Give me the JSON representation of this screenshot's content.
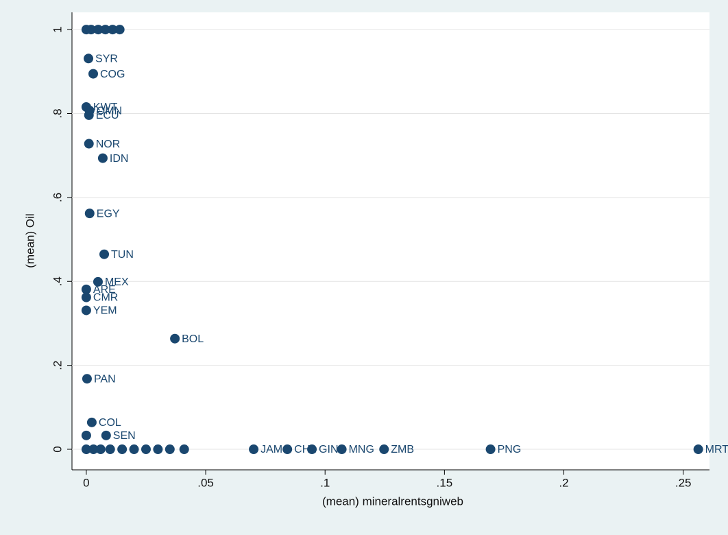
{
  "chart_data": {
    "type": "scatter",
    "xlabel": "(mean) mineralrentsgniweb",
    "ylabel": "(mean) Oil",
    "color": "#1a476f",
    "grid": true,
    "xlim": [
      -0.006,
      0.261
    ],
    "ylim": [
      -0.049,
      1.041
    ],
    "xticks": [
      0,
      {
        "value": 0.05,
        "label": ".05"
      },
      {
        "value": 0.1,
        "label": ".1"
      },
      {
        "value": 0.15,
        "label": ".15"
      },
      {
        "value": 0.2,
        "label": ".2"
      },
      {
        "value": 0.25,
        "label": ".25"
      }
    ],
    "yticks": [
      0,
      {
        "value": 0.2,
        "label": ".2"
      },
      {
        "value": 0.4,
        "label": ".4"
      },
      {
        "value": 0.6,
        "label": ".6"
      },
      {
        "value": 0.8,
        "label": ".8"
      },
      1
    ],
    "x": [
      0.2563,
      0.1693,
      0.1247,
      0.107,
      0.0945,
      0.0842,
      0.0701,
      0.0371,
      0.0003,
      0.0023,
      0.0083,
      0.0,
      0.0,
      0.0,
      0.0,
      0.0049,
      0.0075,
      0.0014,
      0.0069,
      0.0011,
      0.0011,
      0.0,
      0.0014,
      0.0029,
      0.0009,
      0.0,
      0.002,
      0.005,
      0.008,
      0.011,
      0.014,
      0.0,
      0.003,
      0.006,
      0.01,
      0.015,
      0.02,
      0.025,
      0.03,
      0.035,
      0.041
    ],
    "y": [
      0,
      0,
      0,
      0,
      0,
      0,
      0,
      0.2636,
      0.168,
      0.064,
      0.033,
      0.033,
      0.331,
      0.362,
      0.381,
      0.399,
      0.4646,
      0.562,
      0.6936,
      0.728,
      0.796,
      0.8155,
      0.807,
      0.8946,
      0.931,
      1,
      1,
      1,
      1,
      1,
      1,
      0,
      0,
      0,
      0,
      0,
      0,
      0,
      0,
      0,
      0
    ],
    "labels": [
      "MRT",
      "PNG",
      "ZMB",
      "MNG",
      "GIN",
      "CHL",
      "JAM",
      "BOL",
      "PAN",
      "COL",
      "SEN",
      null,
      "YEM",
      "CMR",
      "ARE",
      "MEX",
      "TUN",
      "EGY",
      "IDN",
      "NOR",
      "ECU",
      "KWT",
      "OMN",
      "COG",
      "SYR",
      null,
      null,
      null,
      null,
      null,
      null,
      null,
      null,
      null,
      null,
      null,
      null,
      null,
      null,
      null,
      null
    ]
  }
}
